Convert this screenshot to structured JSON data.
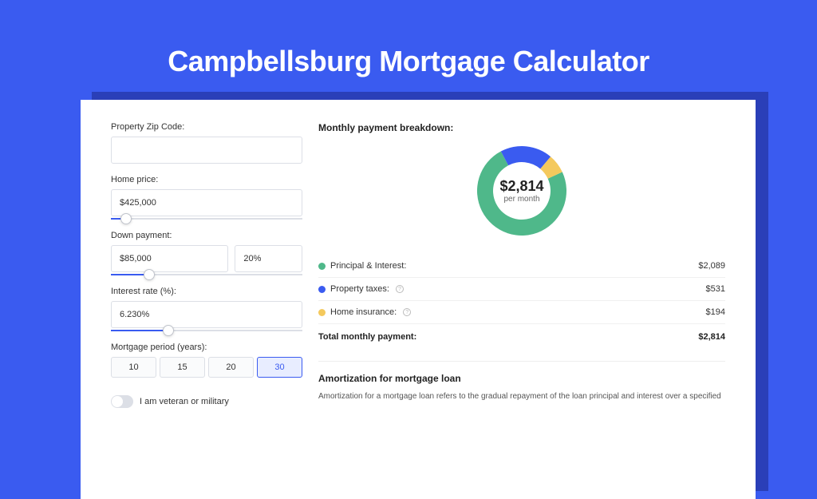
{
  "page": {
    "title": "Campbellsburg Mortgage Calculator",
    "background_color": "#3a5bf0",
    "shadow_color": "#2a3fb8",
    "card_background": "#ffffff"
  },
  "form": {
    "zip": {
      "label": "Property Zip Code:",
      "value": ""
    },
    "home_price": {
      "label": "Home price:",
      "value": "$425,000",
      "slider_pct": 8
    },
    "down_payment": {
      "label": "Down payment:",
      "amount": "$85,000",
      "percent": "20%",
      "slider_pct": 20
    },
    "interest": {
      "label": "Interest rate (%):",
      "value": "6.230%",
      "slider_pct": 30
    },
    "period": {
      "label": "Mortgage period (years):",
      "options": [
        "10",
        "15",
        "20",
        "30"
      ],
      "selected": "30"
    },
    "veteran": {
      "label": "I am veteran or military",
      "checked": false
    }
  },
  "breakdown": {
    "title": "Monthly payment breakdown:",
    "total_amount": "$2,814",
    "total_sub": "per month",
    "donut": {
      "size": 120,
      "thickness": 20,
      "series": [
        {
          "label": "Principal & Interest:",
          "value": "$2,089",
          "pct": 74.2,
          "color": "#4fb88a"
        },
        {
          "label": "Property taxes:",
          "value": "$531",
          "pct": 18.9,
          "color": "#3a5bf0",
          "info": true
        },
        {
          "label": "Home insurance:",
          "value": "$194",
          "pct": 6.9,
          "color": "#f4c95d",
          "info": true
        }
      ]
    },
    "total_row": {
      "label": "Total monthly payment:",
      "value": "$2,814"
    }
  },
  "amortization": {
    "title": "Amortization for mortgage loan",
    "text": "Amortization for a mortgage loan refers to the gradual repayment of the loan principal and interest over a specified"
  }
}
